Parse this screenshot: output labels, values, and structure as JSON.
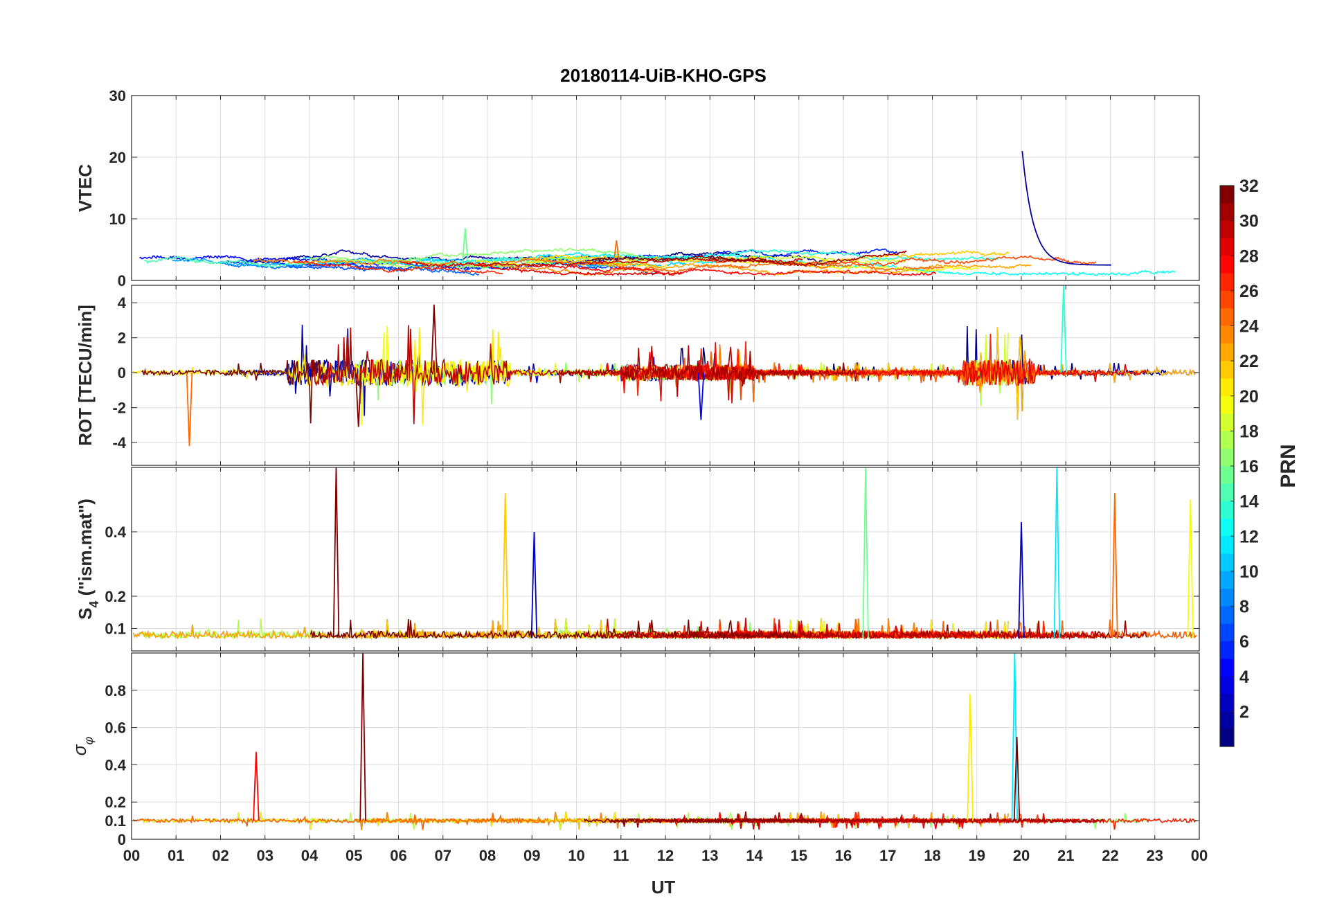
{
  "chart_data": {
    "type": "line",
    "title": "20180114-UiB-KHO-GPS",
    "xlabel": "UT",
    "x_tick_labels": [
      "00",
      "01",
      "02",
      "03",
      "04",
      "05",
      "06",
      "07",
      "08",
      "09",
      "10",
      "11",
      "12",
      "13",
      "14",
      "15",
      "16",
      "17",
      "18",
      "19",
      "20",
      "21",
      "22",
      "23",
      "00"
    ],
    "xlim_hours": [
      0,
      24
    ],
    "grid": true,
    "colorbar": {
      "label": "PRN",
      "range": [
        1,
        32
      ],
      "tick_labels": [
        "2",
        "4",
        "6",
        "8",
        "10",
        "12",
        "14",
        "16",
        "18",
        "20",
        "22",
        "24",
        "26",
        "28",
        "30",
        "32"
      ],
      "colormap": "jet",
      "placement": "right"
    },
    "series_note_prn": [
      1,
      2,
      3,
      5,
      6,
      7,
      8,
      10,
      11,
      12,
      13,
      14,
      15,
      16,
      17,
      18,
      19,
      20,
      21,
      22,
      23,
      24,
      25,
      26,
      27,
      28,
      29,
      30,
      31,
      32
    ],
    "panels": [
      {
        "ylabel": "VTEC",
        "ylim": [
          0,
          30
        ],
        "y_tick_labels": [
          "0",
          "10",
          "20",
          "30"
        ],
        "y_ticks": [
          0,
          10,
          20,
          30
        ],
        "baseline": 3,
        "noise": 1.2,
        "spikes": [
          {
            "x": 20.02,
            "y": 21,
            "prn": 2
          },
          {
            "x": 7.5,
            "y": 8.5,
            "prn": 16
          },
          {
            "x": 10.9,
            "y": 6.5,
            "prn": 25
          }
        ]
      },
      {
        "ylabel": "ROT [TECU/min]",
        "ylim": [
          -5.3,
          5
        ],
        "y_tick_labels": [
          "-4",
          "-2",
          "0",
          "2",
          "4"
        ],
        "y_ticks": [
          -4,
          -2,
          0,
          2,
          4
        ],
        "baseline": 0,
        "noise": 0.5,
        "spikes": [
          {
            "x": 1.3,
            "y": -4.2,
            "prn": 25
          },
          {
            "x": 6.8,
            "y": 3.9,
            "prn": 32
          },
          {
            "x": 20.95,
            "y": 5.0,
            "prn": 14
          },
          {
            "x": 5.1,
            "y": -3.1,
            "prn": 32
          },
          {
            "x": 12.8,
            "y": -2.7,
            "prn": 5
          }
        ]
      },
      {
        "ylabel": "S4 (\"ism.mat\")",
        "ylabel_main": "S",
        "ylabel_sub": "4",
        "ylabel_rest": " (\"ism.mat\")",
        "ylim": [
          0.03,
          0.6
        ],
        "y_tick_labels": [
          "0.1",
          "0.2",
          "0.4"
        ],
        "y_ticks": [
          0.1,
          0.2,
          0.4
        ],
        "baseline": 0.07,
        "noise": 0.03,
        "spikes": [
          {
            "x": 4.6,
            "y": 0.6,
            "prn": 32
          },
          {
            "x": 16.5,
            "y": 0.6,
            "prn": 16
          },
          {
            "x": 20.8,
            "y": 0.6,
            "prn": 12
          },
          {
            "x": 8.4,
            "y": 0.52,
            "prn": 22
          },
          {
            "x": 22.1,
            "y": 0.52,
            "prn": 25
          },
          {
            "x": 23.8,
            "y": 0.5,
            "prn": 20
          },
          {
            "x": 9.05,
            "y": 0.4,
            "prn": 3
          },
          {
            "x": 20.0,
            "y": 0.43,
            "prn": 3
          }
        ]
      },
      {
        "ylabel": "σφ",
        "ylabel_main": "σ",
        "ylabel_sub": "φ",
        "ylim": [
          0,
          1
        ],
        "y_tick_labels": [
          "0",
          "0.1",
          "0.2",
          "0.4",
          "0.6",
          "0.8"
        ],
        "y_ticks": [
          0,
          0.1,
          0.2,
          0.4,
          0.6,
          0.8
        ],
        "baseline": 0.1,
        "noise": 0.02,
        "spikes": [
          {
            "x": 5.2,
            "y": 1.0,
            "prn": 32
          },
          {
            "x": 19.85,
            "y": 1.0,
            "prn": 12
          },
          {
            "x": 18.85,
            "y": 0.78,
            "prn": 21
          },
          {
            "x": 2.8,
            "y": 0.47,
            "prn": 28
          },
          {
            "x": 19.9,
            "y": 0.55,
            "prn": 32
          }
        ]
      }
    ]
  }
}
